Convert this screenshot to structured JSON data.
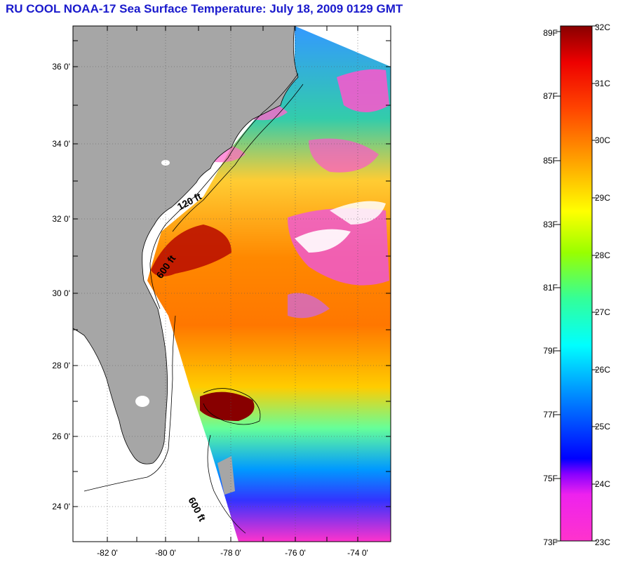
{
  "title": "RU COOL  NOAA-17  Sea Surface Temperature:  July 18, 2009 0129 GMT",
  "map": {
    "lat_ticks": [
      "36 0'",
      "34 0'",
      "32 0'",
      "30 0'",
      "28 0'",
      "26 0'",
      "24 0'"
    ],
    "lon_ticks": [
      "-82 0'",
      "-80 0'",
      "-78 0'",
      "-76 0'",
      "-74 0'"
    ],
    "contour_labels": [
      "120 ft",
      "600 ft",
      "600 ft"
    ],
    "land_color": "#a6a6a6"
  },
  "colorbar": {
    "fahrenheit_labels": [
      "89F",
      "87F",
      "85F",
      "83F",
      "81F",
      "79F",
      "77F",
      "75F",
      "73F"
    ],
    "celsius_labels": [
      "32C",
      "31C",
      "30C",
      "29C",
      "28C",
      "27C",
      "26C",
      "25C",
      "24C",
      "23C"
    ],
    "range_c": [
      23,
      32
    ],
    "range_f": [
      73,
      89
    ],
    "colors": [
      "#ff33cc",
      "#8800ff",
      "#0000ff",
      "#00a0ff",
      "#00ffff",
      "#33ff66",
      "#ffff00",
      "#ffa000",
      "#ff3300",
      "#990000"
    ]
  }
}
